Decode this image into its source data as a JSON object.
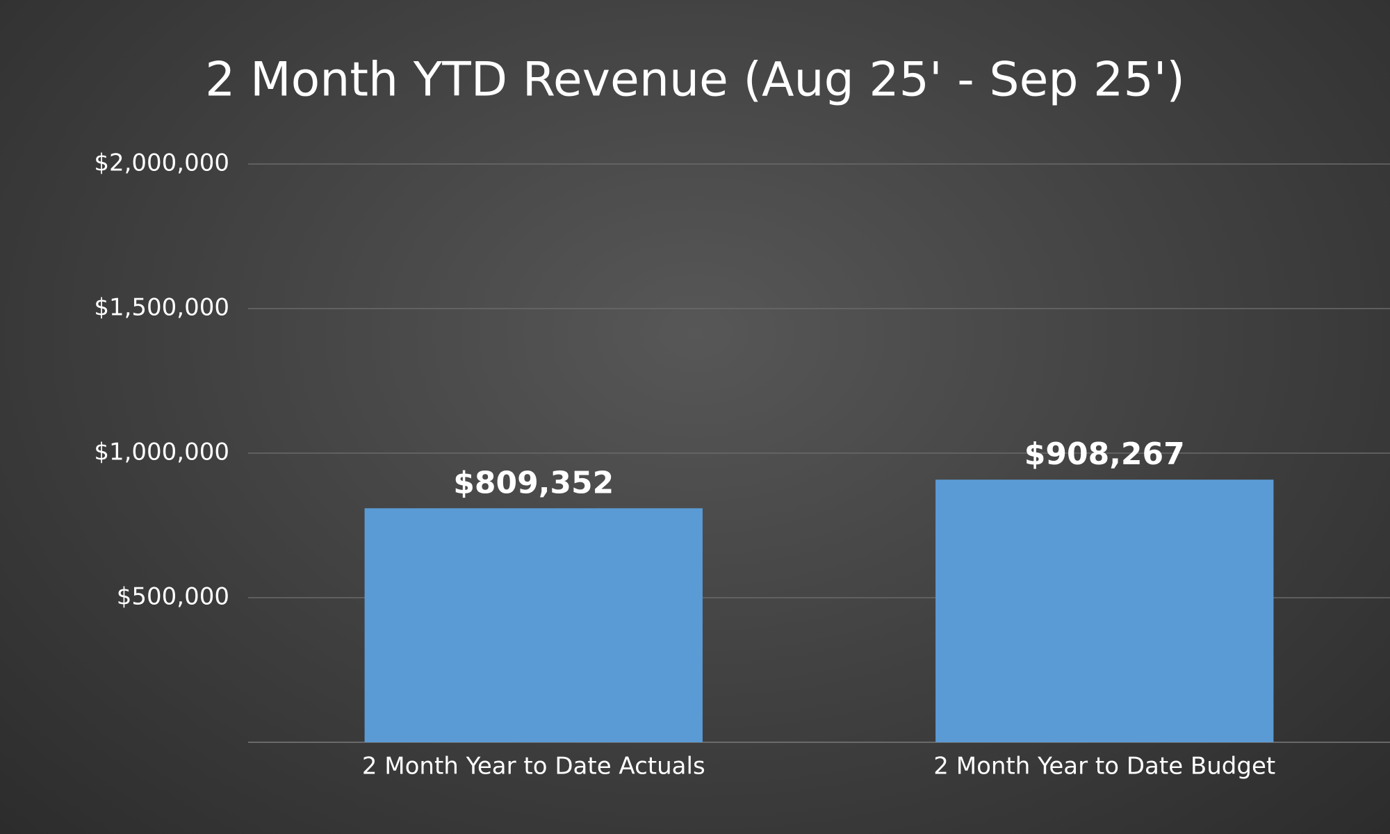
{
  "chart_data": {
    "type": "bar",
    "title": "2 Month YTD Revenue (Aug 25' - Sep 25')",
    "categories": [
      "2 Month Year to Date Actuals",
      "2 Month Year to Date Budget"
    ],
    "values": [
      809352,
      908267
    ],
    "value_labels": [
      "$809,352",
      "$908,267"
    ],
    "color": "#5b9bd5",
    "ylim": [
      0,
      2000000
    ],
    "yticks": [
      {
        "value": 500000,
        "label": "$500,000"
      },
      {
        "value": 1000000,
        "label": "$1,000,000"
      },
      {
        "value": 1500000,
        "label": "$1,500,000"
      },
      {
        "value": 2000000,
        "label": "$2,000,000"
      }
    ],
    "grid": true
  }
}
